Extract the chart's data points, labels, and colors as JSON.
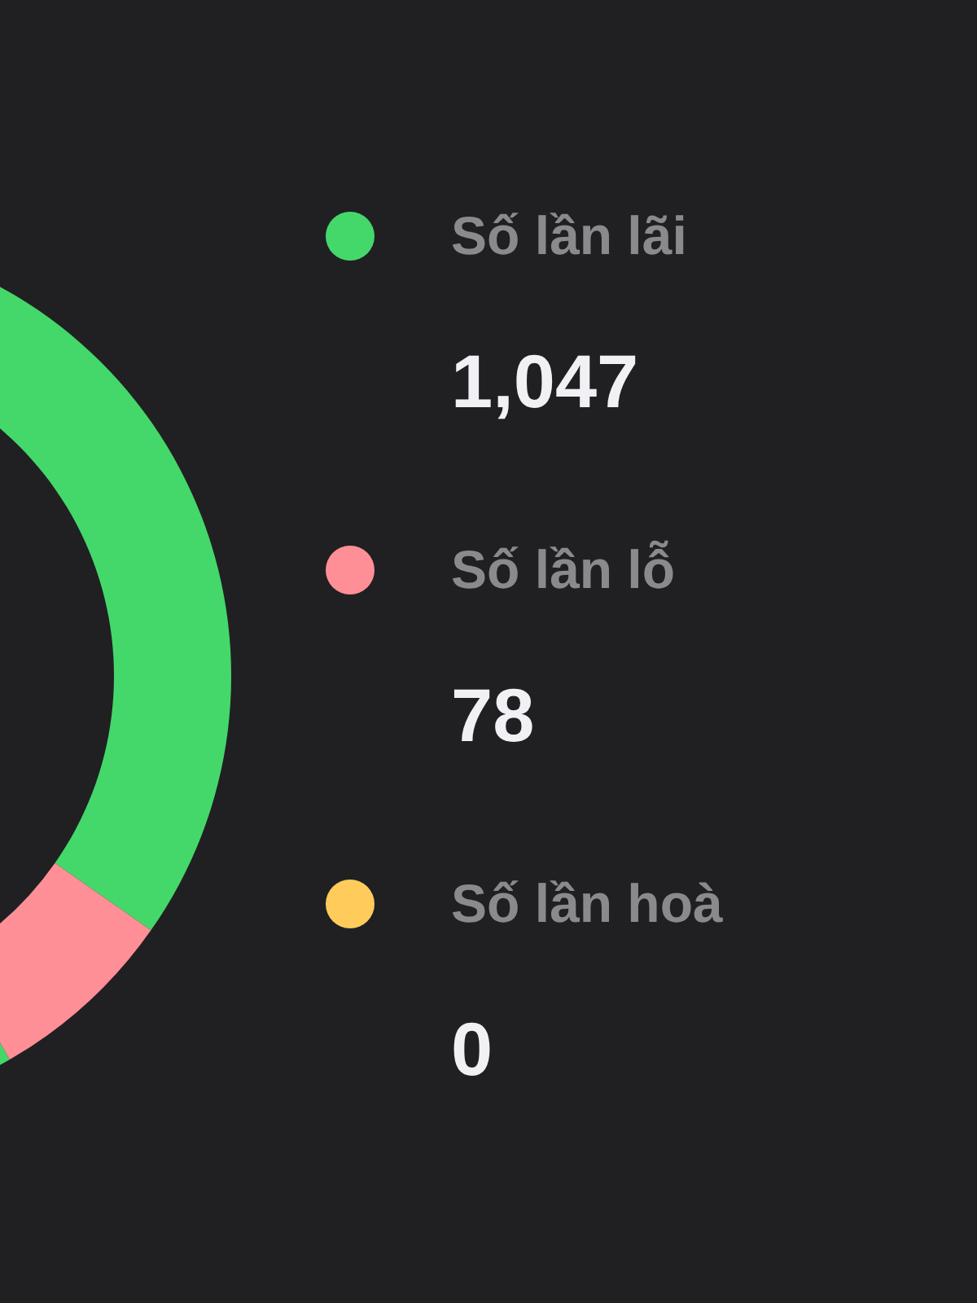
{
  "chart_data": {
    "type": "donut",
    "categories": [
      "Số lần lãi",
      "Số lần lỗ",
      "Số lần hoà"
    ],
    "values": [
      1047,
      78,
      0
    ],
    "value_labels": [
      "1,047",
      "78",
      "0"
    ],
    "colors": [
      "#44d86b",
      "#ff8f96",
      "#ffcc5c"
    ],
    "legend": "right"
  }
}
